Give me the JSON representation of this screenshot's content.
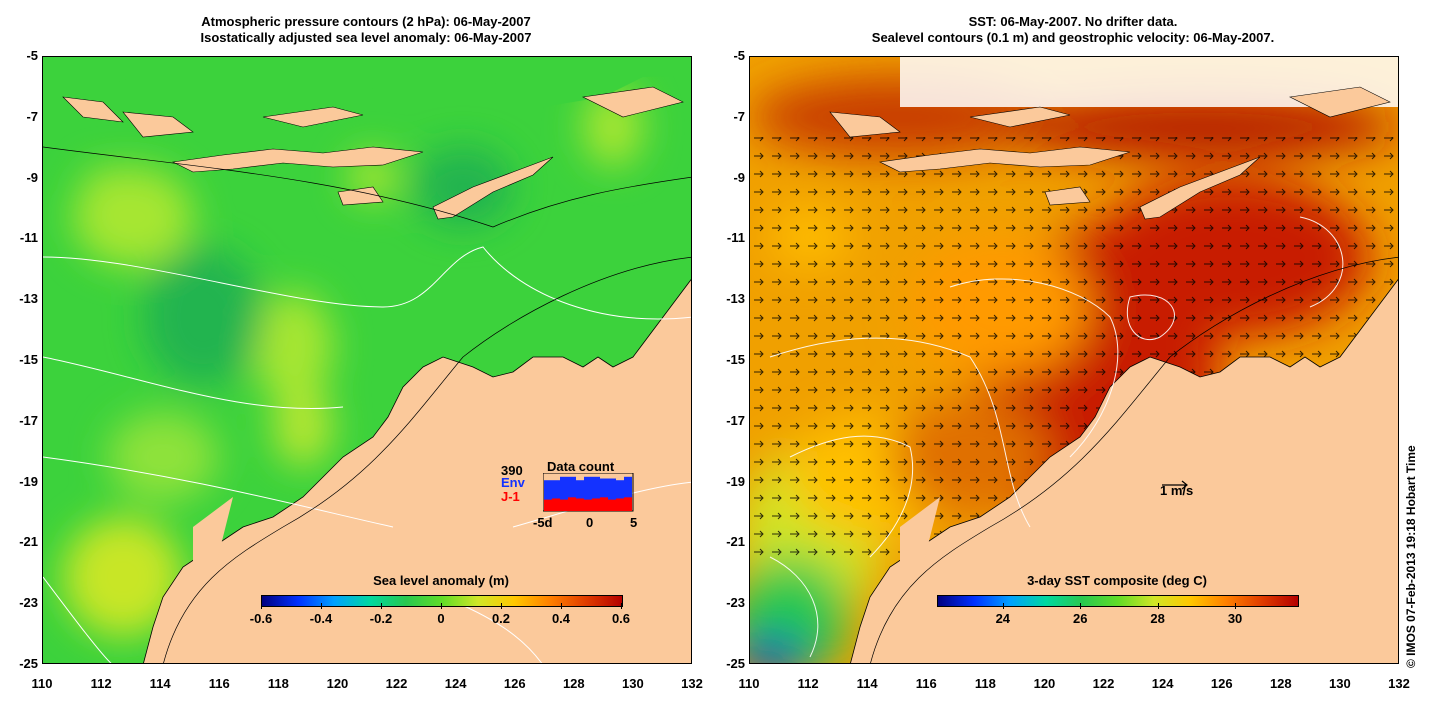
{
  "left_panel": {
    "title_line1": "Atmospheric pressure contours (2 hPa): 06-May-2007",
    "title_line2": "Isostatically adjusted sea level anomaly: 06-May-2007",
    "colorbar": {
      "title": "Sea level anomaly (m)",
      "ticks": [
        "-0.6",
        "-0.4",
        "-0.2",
        "0",
        "0.2",
        "0.4",
        "0.6"
      ],
      "range": [
        -0.6,
        0.6
      ]
    },
    "data_count": {
      "title": "Data count",
      "count": "390",
      "series1": "Env",
      "series2": "J-1",
      "axis_ticks": [
        "-5d",
        "0",
        "5"
      ],
      "series1_color": "#1432ff",
      "series2_color": "#ff0000",
      "bars_env": [
        0.9,
        0.9,
        1.0,
        1.0,
        0.9,
        1.0,
        1.0,
        0.95,
        0.95,
        0.9,
        1.0
      ],
      "bars_j1": [
        0.5,
        0.55,
        0.5,
        0.6,
        0.55,
        0.5,
        0.55,
        0.6,
        0.5,
        0.55,
        0.6
      ]
    }
  },
  "right_panel": {
    "title_line1": "SST: 06-May-2007. No drifter data.",
    "title_line2": "Sealevel contours (0.1 m) and geostrophic velocity: 06-May-2007.",
    "colorbar": {
      "title": "3-day SST composite (deg C)",
      "ticks": [
        "24",
        "26",
        "28",
        "30"
      ],
      "range": [
        22.3,
        31.6
      ]
    },
    "velocity_scale_label": "1 m/s"
  },
  "axes": {
    "lat_ticks": [
      "-5",
      "-7",
      "-9",
      "-11",
      "-13",
      "-15",
      "-17",
      "-19",
      "-21",
      "-23",
      "-25"
    ],
    "lon_ticks": [
      "110",
      "112",
      "114",
      "116",
      "118",
      "120",
      "122",
      "124",
      "126",
      "128",
      "130",
      "132"
    ],
    "lat_range": [
      -25,
      -5
    ],
    "lon_range": [
      110,
      132
    ]
  },
  "credit": "© IMOS 07-Feb-2013 19:18 Hobart Time",
  "colors": {
    "land": "#fbc99b",
    "sla_background": "#3cd23c",
    "sst_warm": "#c81e00"
  }
}
